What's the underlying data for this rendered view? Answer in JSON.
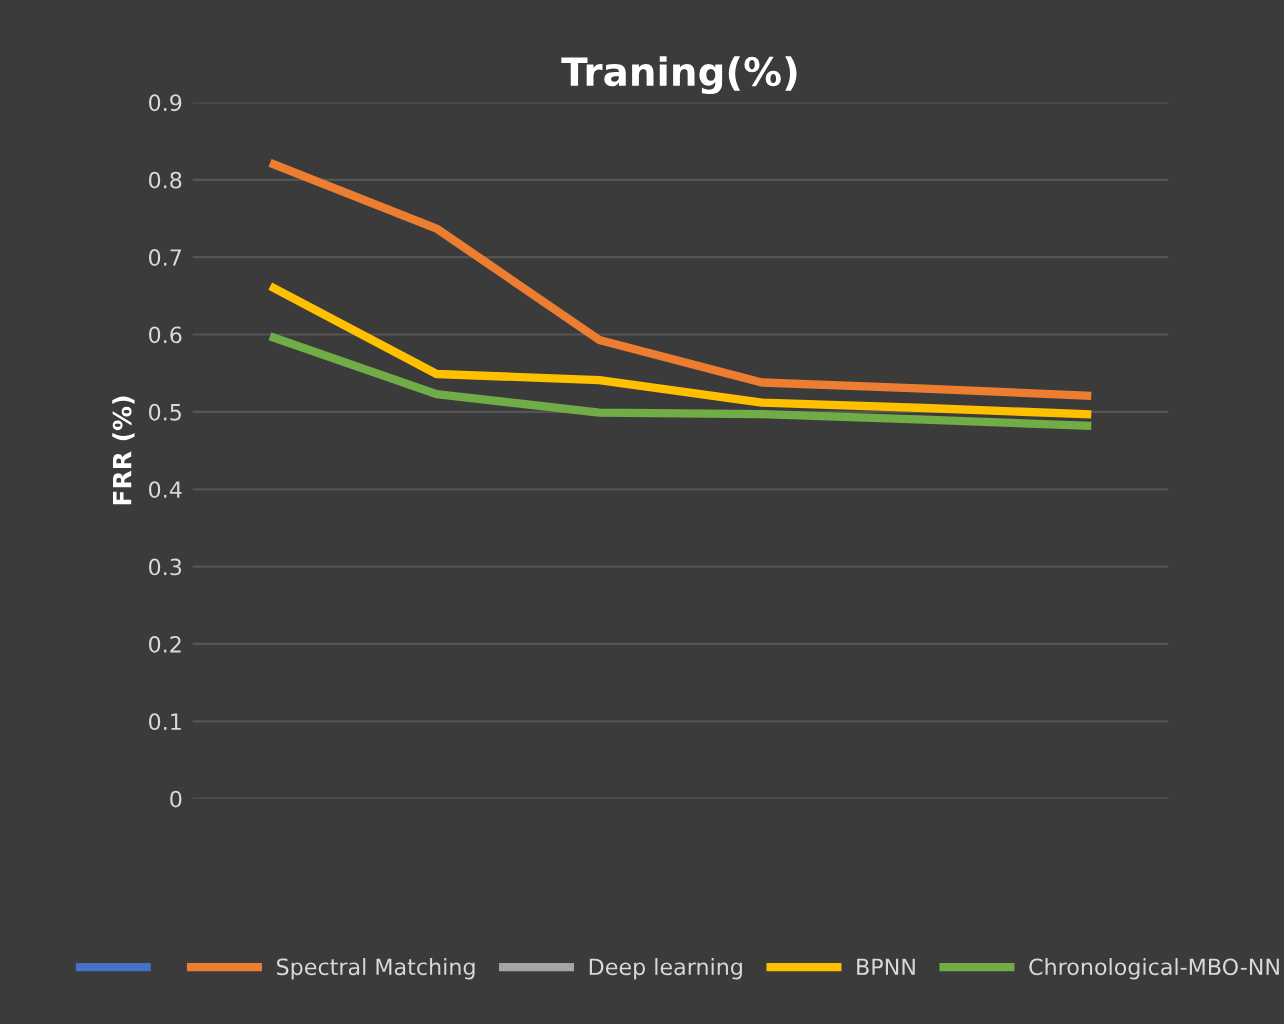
{
  "chart_data": {
    "type": "line",
    "title": "Traning(%)",
    "ylabel": "FRR (%)",
    "categories": [
      null,
      null,
      null,
      null,
      null,
      null
    ],
    "series": [
      {
        "color": "#4472c4",
        "values": [
          null,
          null,
          null,
          null,
          null,
          null
        ]
      },
      {
        "name": "Spectral Matching",
        "color": "#ed7d31",
        "values": [
          0.82,
          0.737,
          0.593,
          0.538,
          0.53,
          0.521
        ]
      },
      {
        "name": "Deep learning",
        "color": "#a5a5a5",
        "values": [
          null,
          null,
          null,
          null,
          null,
          null
        ]
      },
      {
        "name": "BPNN",
        "color": "#ffc000",
        "values": [
          0.66,
          0.549,
          0.541,
          0.512,
          0.505,
          0.497
        ]
      },
      {
        "name": "Chronological-MBO-NN",
        "color": "#70ad47",
        "values": [
          0.596,
          0.523,
          0.499,
          0.497,
          0.49,
          0.482
        ]
      }
    ],
    "ylim": [
      0,
      0.9
    ],
    "yticks": [
      0,
      0.1,
      0.2,
      0.3,
      0.4,
      0.5,
      0.6,
      0.7,
      0.8,
      0.9
    ],
    "grid": "y",
    "legend": "bottom",
    "marker": "none",
    "line_style": "solid"
  }
}
